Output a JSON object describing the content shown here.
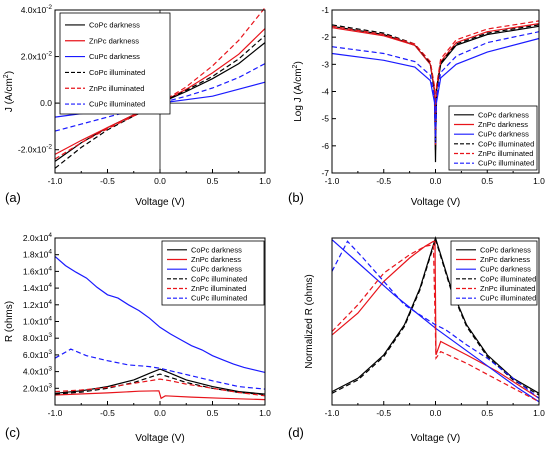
{
  "chart_data": [
    {
      "panel_label": "(a)",
      "type": "line",
      "xlabel": "Voltage (V)",
      "ylabel": "J (A/cm",
      "ylabel_sup": "2",
      "ylabel_end": ")",
      "xlim": [
        -1,
        1
      ],
      "ylim": [
        -0.03,
        0.04
      ],
      "x_ticks": [
        -1.0,
        -0.5,
        0.0,
        0.5,
        1.0
      ],
      "x_tick_labels": [
        "-1.0",
        "-0.5",
        "0.0",
        "0.5",
        "1.0"
      ],
      "y_ticks": [
        -0.02,
        0.0,
        0.02,
        0.04
      ],
      "y_tick_labels": [
        {
          "base": "-2.0x10",
          "exp": "-2"
        },
        {
          "base": "0.0",
          "exp": ""
        },
        {
          "base": "2.0x10",
          "exp": "-2"
        },
        {
          "base": "4.0x10",
          "exp": "-2"
        }
      ],
      "zero_lines": true,
      "legend_position": "top-left",
      "legend_box": true,
      "series": [
        {
          "name": "CoPc darkness",
          "color": "#000000",
          "dash": "solid",
          "x": [
            -1,
            -0.75,
            -0.5,
            -0.25,
            0,
            0.25,
            0.5,
            0.75,
            1
          ],
          "y": [
            -0.025,
            -0.017,
            -0.0105,
            -0.005,
            0,
            0.005,
            0.0105,
            0.017,
            0.026
          ]
        },
        {
          "name": "ZnPc darkness",
          "color": "#e8141b",
          "dash": "solid",
          "x": [
            -1,
            -0.75,
            -0.5,
            -0.25,
            0,
            0.25,
            0.5,
            0.75,
            1
          ],
          "y": [
            -0.022,
            -0.016,
            -0.0105,
            -0.005,
            0,
            0.006,
            0.013,
            0.021,
            0.032
          ]
        },
        {
          "name": "CuPc darkness",
          "color": "#1a1aff",
          "dash": "solid",
          "x": [
            -1,
            -0.75,
            -0.5,
            -0.25,
            0,
            0.25,
            0.5,
            0.75,
            1
          ],
          "y": [
            -0.006,
            -0.0045,
            -0.003,
            -0.0015,
            0,
            0.0015,
            0.003,
            0.006,
            0.009
          ]
        },
        {
          "name": "CoPc illuminated",
          "color": "#000000",
          "dash": "dashed",
          "x": [
            -1,
            -0.75,
            -0.5,
            -0.25,
            0,
            0.25,
            0.5,
            0.75,
            1
          ],
          "y": [
            -0.028,
            -0.019,
            -0.0115,
            -0.0055,
            0,
            0.0055,
            0.0115,
            0.019,
            0.029
          ]
        },
        {
          "name": "ZnPc illuminated",
          "color": "#e8141b",
          "dash": "dashed",
          "x": [
            -1,
            -0.75,
            -0.5,
            -0.25,
            0,
            0.25,
            0.5,
            0.75,
            1
          ],
          "y": [
            -0.024,
            -0.017,
            -0.011,
            -0.0055,
            0,
            0.007,
            0.016,
            0.027,
            0.041
          ]
        },
        {
          "name": "CuPc illuminated",
          "color": "#1a1aff",
          "dash": "dashed",
          "x": [
            -1,
            -0.75,
            -0.5,
            -0.25,
            0,
            0.25,
            0.5,
            0.75,
            1
          ],
          "y": [
            -0.012,
            -0.009,
            -0.006,
            -0.003,
            0,
            0.003,
            0.0065,
            0.011,
            0.017
          ]
        }
      ]
    },
    {
      "panel_label": "(b)",
      "type": "line",
      "xlabel": "Voltage (V)",
      "ylabel": "Log J (A/cm",
      "ylabel_sup": "2",
      "ylabel_end": ")",
      "xlim": [
        -1,
        1
      ],
      "ylim": [
        -7,
        -1
      ],
      "x_ticks": [
        -1.0,
        -0.5,
        0.0,
        0.5,
        1.0
      ],
      "x_tick_labels": [
        "-1.0",
        "-0.5",
        "0.0",
        "0.5",
        "1.0"
      ],
      "y_ticks": [
        -7,
        -6,
        -5,
        -4,
        -3,
        -2,
        -1
      ],
      "y_tick_labels": [
        {
          "base": "-7",
          "exp": ""
        },
        {
          "base": "-6",
          "exp": ""
        },
        {
          "base": "-5",
          "exp": ""
        },
        {
          "base": "-4",
          "exp": ""
        },
        {
          "base": "-3",
          "exp": ""
        },
        {
          "base": "-2",
          "exp": ""
        },
        {
          "base": "-1",
          "exp": ""
        }
      ],
      "zero_lines": false,
      "legend_position": "bottom-right",
      "legend_box": true,
      "series": [
        {
          "name": "CoPc darkness",
          "color": "#000000",
          "dash": "solid",
          "x": [
            -1,
            -0.5,
            -0.2,
            -0.05,
            -0.01,
            0,
            0.01,
            0.05,
            0.2,
            0.5,
            1
          ],
          "y": [
            -1.6,
            -1.9,
            -2.3,
            -3.0,
            -4.0,
            -6.6,
            -4.0,
            -3.0,
            -2.3,
            -1.9,
            -1.6
          ]
        },
        {
          "name": "ZnPc darkness",
          "color": "#e8141b",
          "dash": "solid",
          "x": [
            -1,
            -0.5,
            -0.2,
            -0.05,
            -0.01,
            0,
            0.01,
            0.05,
            0.2,
            0.5,
            1
          ],
          "y": [
            -1.65,
            -1.95,
            -2.3,
            -3.0,
            -3.9,
            -6.0,
            -3.9,
            -2.9,
            -2.2,
            -1.8,
            -1.5
          ]
        },
        {
          "name": "CuPc darkness",
          "color": "#1a1aff",
          "dash": "solid",
          "x": [
            -1,
            -0.5,
            -0.2,
            -0.05,
            -0.01,
            0,
            0.01,
            0.05,
            0.2,
            0.5,
            1
          ],
          "y": [
            -2.6,
            -2.85,
            -3.1,
            -3.6,
            -4.4,
            -5.9,
            -4.4,
            -3.5,
            -3.0,
            -2.55,
            -2.05
          ]
        },
        {
          "name": "CoPc illuminated",
          "color": "#000000",
          "dash": "dashed",
          "x": [
            -1,
            -0.5,
            -0.2,
            -0.05,
            -0.01,
            0,
            0.01,
            0.05,
            0.2,
            0.5,
            1
          ],
          "y": [
            -1.55,
            -1.85,
            -2.25,
            -2.95,
            -3.9,
            -6.2,
            -3.9,
            -2.95,
            -2.25,
            -1.85,
            -1.55
          ]
        },
        {
          "name": "ZnPc illuminated",
          "color": "#e8141b",
          "dash": "dashed",
          "x": [
            -1,
            -0.5,
            -0.2,
            -0.05,
            -0.01,
            0,
            0.01,
            0.05,
            0.2,
            0.5,
            1
          ],
          "y": [
            -1.6,
            -1.9,
            -2.25,
            -2.9,
            -3.8,
            -5.5,
            -3.8,
            -2.8,
            -2.1,
            -1.7,
            -1.4
          ]
        },
        {
          "name": "CuPc illuminated",
          "color": "#1a1aff",
          "dash": "dashed",
          "x": [
            -1,
            -0.5,
            -0.2,
            -0.05,
            -0.01,
            0,
            0.01,
            0.05,
            0.2,
            0.5,
            1
          ],
          "y": [
            -2.35,
            -2.6,
            -2.9,
            -3.4,
            -4.2,
            -5.8,
            -4.2,
            -3.3,
            -2.7,
            -2.2,
            -1.8
          ]
        }
      ]
    },
    {
      "panel_label": "(c)",
      "type": "line",
      "xlabel": "Voltage (V)",
      "ylabel": "R (ohms)",
      "ylabel_sup": "",
      "ylabel_end": "",
      "xlim": [
        -1,
        1
      ],
      "ylim": [
        0,
        20000
      ],
      "x_ticks": [
        -1.0,
        -0.5,
        0.0,
        0.5,
        1.0
      ],
      "x_tick_labels": [
        "-1.0",
        "-0.5",
        "0.0",
        "0.5",
        "1.0"
      ],
      "y_ticks": [
        2000,
        4000,
        6000,
        8000,
        10000,
        12000,
        14000,
        16000,
        18000,
        20000
      ],
      "y_tick_labels": [
        {
          "base": "2.0x10",
          "exp": "3"
        },
        {
          "base": "4.0x10",
          "exp": "3"
        },
        {
          "base": "6.0x10",
          "exp": "3"
        },
        {
          "base": "8.0x10",
          "exp": "3"
        },
        {
          "base": "1.0x10",
          "exp": "4"
        },
        {
          "base": "1.2x10",
          "exp": "4"
        },
        {
          "base": "1.4x10",
          "exp": "4"
        },
        {
          "base": "1.6x10",
          "exp": "4"
        },
        {
          "base": "1.8x10",
          "exp": "4"
        },
        {
          "base": "2.0x10",
          "exp": "4"
        }
      ],
      "zero_lines": false,
      "legend_position": "top-right",
      "legend_box": true,
      "series": [
        {
          "name": "CoPc darkness",
          "color": "#000000",
          "dash": "solid",
          "x": [
            -1,
            -0.75,
            -0.5,
            -0.25,
            -0.1,
            0,
            0.1,
            0.25,
            0.5,
            0.75,
            1
          ],
          "y": [
            1400,
            1700,
            2200,
            3000,
            3800,
            4300,
            3800,
            3000,
            2200,
            1600,
            1300
          ]
        },
        {
          "name": "ZnPc darkness",
          "color": "#e8141b",
          "dash": "solid",
          "x": [
            -1,
            -0.5,
            -0.2,
            -0.01,
            0.01,
            0.05,
            0.3,
            0.6,
            1
          ],
          "y": [
            1200,
            1450,
            1650,
            1700,
            800,
            1100,
            950,
            800,
            650
          ]
        },
        {
          "name": "CuPc darkness",
          "color": "#1a1aff",
          "dash": "solid",
          "x": [
            -1,
            -0.9,
            -0.8,
            -0.7,
            -0.6,
            -0.5,
            -0.4,
            -0.3,
            -0.2,
            -0.1,
            0,
            0.1,
            0.2,
            0.3,
            0.4,
            0.5,
            0.6,
            0.7,
            0.8,
            0.9,
            1
          ],
          "y": [
            17800,
            16700,
            15900,
            15200,
            14100,
            13200,
            12800,
            12000,
            11300,
            10400,
            9300,
            8500,
            7800,
            7100,
            6600,
            5900,
            5400,
            4900,
            4500,
            4200,
            3900
          ]
        },
        {
          "name": "CoPc illuminated",
          "color": "#000000",
          "dash": "dashed",
          "x": [
            -1,
            -0.75,
            -0.5,
            -0.25,
            -0.1,
            0,
            0.1,
            0.25,
            0.5,
            0.75,
            1
          ],
          "y": [
            1300,
            1550,
            2000,
            2700,
            3300,
            3700,
            3300,
            2700,
            2000,
            1500,
            1250
          ]
        },
        {
          "name": "ZnPc illuminated",
          "color": "#e8141b",
          "dash": "dashed",
          "x": [
            -1,
            -0.75,
            -0.5,
            -0.25,
            -0.1,
            0,
            0.1,
            0.25,
            0.5,
            0.75,
            1
          ],
          "y": [
            1600,
            1800,
            2100,
            2600,
            2900,
            3100,
            2900,
            2500,
            2000,
            1500,
            1100
          ]
        },
        {
          "name": "CuPc illuminated",
          "color": "#1a1aff",
          "dash": "dashed",
          "x": [
            -1,
            -0.85,
            -0.7,
            -0.5,
            -0.3,
            -0.1,
            0,
            0.1,
            0.3,
            0.5,
            0.75,
            1
          ],
          "y": [
            5600,
            6700,
            5900,
            5300,
            4800,
            4600,
            4400,
            4100,
            3500,
            2900,
            2200,
            1900
          ]
        }
      ]
    },
    {
      "panel_label": "(d)",
      "type": "line",
      "xlabel": "Voltage (V)",
      "ylabel": "Normalized R (ohms)",
      "ylabel_sup": "",
      "ylabel_end": "",
      "xlim": [
        -1,
        1
      ],
      "ylim": [
        0,
        1
      ],
      "x_ticks": [
        -1.0,
        -0.5,
        0.0,
        0.5,
        1.0
      ],
      "x_tick_labels": [
        "-1.0",
        "-0.5",
        "0.0",
        "0.5",
        "1.0"
      ],
      "y_ticks": [],
      "y_tick_labels": [],
      "zero_lines": false,
      "legend_position": "top-right",
      "legend_box": true,
      "series": [
        {
          "name": "CoPc darkness",
          "color": "#000000",
          "dash": "solid",
          "x": [
            -1,
            -0.75,
            -0.5,
            -0.3,
            -0.15,
            -0.05,
            0,
            0.05,
            0.15,
            0.3,
            0.5,
            0.75,
            1
          ],
          "y": [
            0.08,
            0.16,
            0.3,
            0.48,
            0.7,
            0.9,
            1.0,
            0.9,
            0.7,
            0.48,
            0.3,
            0.16,
            0.07
          ]
        },
        {
          "name": "ZnPc darkness",
          "color": "#e8141b",
          "dash": "solid",
          "x": [
            -1,
            -0.75,
            -0.5,
            -0.25,
            -0.1,
            -0.02,
            -0.005,
            0.005,
            0.05,
            0.3,
            0.6,
            1
          ],
          "y": [
            0.42,
            0.55,
            0.74,
            0.88,
            0.95,
            0.98,
            0.98,
            0.3,
            0.38,
            0.3,
            0.2,
            0.04
          ]
        },
        {
          "name": "CuPc darkness",
          "color": "#1a1aff",
          "dash": "solid",
          "x": [
            -1,
            -0.8,
            -0.6,
            -0.4,
            -0.2,
            0,
            0.2,
            0.4,
            0.6,
            0.8,
            1
          ],
          "y": [
            0.99,
            0.88,
            0.77,
            0.66,
            0.56,
            0.46,
            0.37,
            0.28,
            0.19,
            0.1,
            0.02
          ]
        },
        {
          "name": "CoPc illuminated",
          "color": "#000000",
          "dash": "dashed",
          "x": [
            -1,
            -0.75,
            -0.5,
            -0.3,
            -0.15,
            -0.05,
            0,
            0.05,
            0.15,
            0.3,
            0.5,
            0.75,
            1
          ],
          "y": [
            0.07,
            0.15,
            0.29,
            0.47,
            0.69,
            0.89,
            0.99,
            0.89,
            0.69,
            0.47,
            0.29,
            0.15,
            0.06
          ]
        },
        {
          "name": "ZnPc illuminated",
          "color": "#e8141b",
          "dash": "dashed",
          "x": [
            -1,
            -0.75,
            -0.5,
            -0.25,
            -0.1,
            -0.02,
            0.005,
            0.05,
            0.3,
            0.6,
            1
          ],
          "y": [
            0.44,
            0.6,
            0.79,
            0.9,
            0.95,
            0.96,
            0.28,
            0.32,
            0.25,
            0.15,
            0.02
          ]
        },
        {
          "name": "CuPc illuminated",
          "color": "#1a1aff",
          "dash": "dashed",
          "x": [
            -1,
            -0.85,
            -0.7,
            -0.5,
            -0.3,
            -0.1,
            0,
            0.1,
            0.3,
            0.5,
            0.75,
            1
          ],
          "y": [
            0.8,
            0.98,
            0.88,
            0.74,
            0.6,
            0.52,
            0.48,
            0.45,
            0.36,
            0.28,
            0.16,
            0.04
          ]
        }
      ]
    }
  ]
}
